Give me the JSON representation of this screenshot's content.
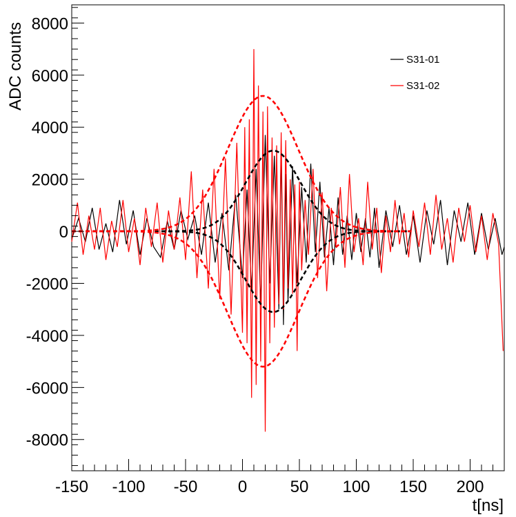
{
  "chart_data": {
    "type": "line",
    "title": "",
    "xlabel": "t[ns]",
    "ylabel": "ADC counts",
    "xlim": [
      -150,
      230
    ],
    "ylim": [
      -9200,
      8700
    ],
    "xticks": [
      -150,
      -100,
      -50,
      0,
      50,
      100,
      150,
      200
    ],
    "yticks": [
      -8000,
      -6000,
      -4000,
      -2000,
      0,
      2000,
      4000,
      6000,
      8000
    ],
    "x_tick_labels": [
      "-150",
      "-100",
      "-50",
      "0",
      "50",
      "100",
      "150",
      "200"
    ],
    "y_tick_labels": [
      "-8000",
      "-6000",
      "-4000",
      "-2000",
      "0",
      "2000",
      "4000",
      "6000",
      "8000"
    ],
    "grid": false,
    "legend_position": "top-right",
    "series": [
      {
        "name": "S31-01",
        "color": "#000000",
        "style": "solid",
        "x": [
          -150,
          -144,
          -138,
          -132,
          -126,
          -120,
          -114,
          -108,
          -102,
          -96,
          -90,
          -84,
          -78,
          -72,
          -66,
          -60,
          -54,
          -48,
          -42,
          -36,
          -30,
          -24,
          -18,
          -12,
          -6,
          0,
          4,
          8,
          12,
          16,
          20,
          24,
          28,
          32,
          34,
          36,
          38,
          40,
          44,
          48,
          52,
          56,
          60,
          64,
          68,
          72,
          76,
          80,
          84,
          88,
          92,
          96,
          100,
          104,
          108,
          112,
          116,
          120,
          126,
          132,
          138,
          144,
          150,
          156,
          162,
          168,
          174,
          180,
          186,
          192,
          198,
          204,
          210,
          216,
          222,
          228,
          230
        ],
        "y": [
          -300,
          500,
          -400,
          900,
          -700,
          300,
          -800,
          1200,
          -500,
          800,
          -900,
          500,
          -600,
          -1000,
          400,
          -700,
          800,
          -300,
          600,
          -900,
          1100,
          -1200,
          700,
          -1500,
          1400,
          -1800,
          1600,
          -2300,
          2400,
          -2800,
          3700,
          -2000,
          2900,
          -3000,
          3200,
          -3600,
          2200,
          -2700,
          2500,
          -2000,
          1700,
          -1200,
          2600,
          -800,
          1900,
          -1000,
          900,
          -1300,
          1300,
          -900,
          600,
          -1100,
          700,
          -800,
          500,
          -1000,
          900,
          -1400,
          800,
          -600,
          1000,
          -900,
          600,
          -1200,
          800,
          -500,
          1200,
          -1300,
          800,
          -400,
          1100,
          -900,
          700,
          -700,
          500,
          -900,
          -600
        ]
      },
      {
        "name": "S31-02",
        "color": "#ff0000",
        "style": "solid",
        "x": [
          -150,
          -145,
          -140,
          -135,
          -130,
          -125,
          -120,
          -115,
          -110,
          -105,
          -100,
          -95,
          -90,
          -85,
          -80,
          -75,
          -70,
          -65,
          -60,
          -55,
          -50,
          -45,
          -40,
          -35,
          -30,
          -25,
          -20,
          -15,
          -10,
          -5,
          0,
          2,
          4,
          6,
          8,
          10,
          12,
          14,
          16,
          18,
          20,
          22,
          24,
          26,
          28,
          30,
          32,
          34,
          36,
          38,
          40,
          42,
          44,
          46,
          48,
          50,
          52,
          55,
          58,
          62,
          66,
          70,
          74,
          78,
          82,
          86,
          90,
          94,
          98,
          102,
          106,
          110,
          114,
          118,
          122,
          126,
          130,
          134,
          138,
          142,
          146,
          150,
          155,
          160,
          165,
          170,
          175,
          180,
          185,
          190,
          195,
          200,
          205,
          210,
          215,
          220,
          225,
          229
        ],
        "y": [
          -400,
          1100,
          -900,
          600,
          -700,
          900,
          -1100,
          400,
          -600,
          1200,
          -800,
          500,
          -1300,
          900,
          -600,
          1100,
          -1200,
          800,
          -700,
          1300,
          -1100,
          2300,
          -1800,
          1600,
          -2200,
          2400,
          -2600,
          2800,
          -3200,
          3400,
          -3900,
          4000,
          -4300,
          4300,
          -6400,
          7000,
          -5900,
          5600,
          -5000,
          4600,
          -7700,
          4800,
          -4300,
          3600,
          -3700,
          3300,
          -2800,
          3800,
          -3000,
          3500,
          -2200,
          2000,
          -2400,
          1800,
          -4600,
          1900,
          -1500,
          1200,
          -900,
          2400,
          -1800,
          1500,
          -2300,
          900,
          -600,
          1700,
          -1400,
          2200,
          -800,
          500,
          -1300,
          1900,
          -700,
          900,
          -1600,
          600,
          -800,
          1200,
          -500,
          700,
          -1000,
          800,
          -600,
          1100,
          -900,
          1400,
          -700,
          500,
          -1200,
          900,
          -400,
          1000,
          -800,
          600,
          -1100,
          700,
          -500,
          -4600
        ]
      },
      {
        "name": "",
        "color": "#000000",
        "style": "dashed",
        "envelope": {
          "amplitude": 3100,
          "center": 27,
          "sigma": 24,
          "x_range": [
            -150,
            148
          ]
        }
      },
      {
        "name": "",
        "color": "#ff0000",
        "style": "dashed",
        "envelope": {
          "amplitude": 5200,
          "center": 18,
          "sigma": 31,
          "x_range": [
            -150,
            148
          ]
        }
      }
    ],
    "legend": [
      {
        "label": "S31-01",
        "color": "#000000"
      },
      {
        "label": "S31-02",
        "color": "#ff0000"
      }
    ]
  }
}
